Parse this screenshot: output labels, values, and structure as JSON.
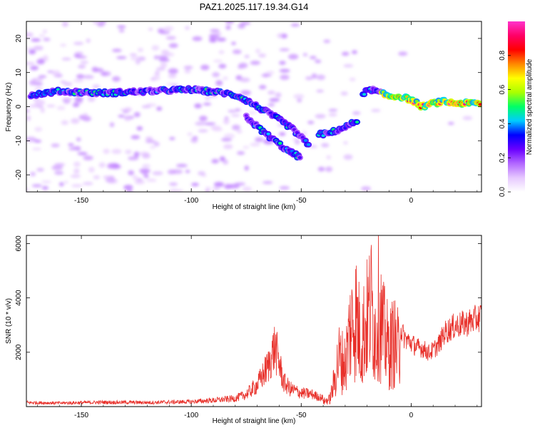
{
  "title": "PAZ1.2025.117.19.34.G14",
  "chart_data": [
    {
      "type": "heatmap",
      "xlabel": "Height of straight line (km)",
      "ylabel": "Frequency (Hz)",
      "xlim": [
        -175,
        32
      ],
      "ylim": [
        -25,
        25
      ],
      "xticks": [
        -150,
        -100,
        -50,
        0
      ],
      "yticks": [
        -20,
        -10,
        0,
        10,
        20
      ],
      "colorbar": {
        "label": "Normalized spectral amplitude",
        "range": [
          0,
          1
        ],
        "ticks": [
          0.0,
          0.2,
          0.4,
          0.6,
          0.8
        ],
        "colors": [
          "#ffffff",
          "#e6c8ff",
          "#b266ff",
          "#6a00ff",
          "#0000ff",
          "#00ccff",
          "#00ff66",
          "#aaff00",
          "#ffff00",
          "#ff8800",
          "#ff0000",
          "#ff0066",
          "#ff33cc"
        ]
      },
      "ridges": [
        {
          "x": [
            -173,
            -160,
            -140,
            -120,
            -100,
            -85,
            -78,
            -70,
            -62,
            -55,
            -50,
            -46
          ],
          "y": [
            3.5,
            4.5,
            4,
            4.5,
            5,
            4,
            3,
            0,
            -3,
            -6,
            -9,
            -12
          ]
        },
        {
          "x": [
            -75,
            -68,
            -62,
            -56,
            -50
          ],
          "y": [
            -3,
            -7,
            -10,
            -13,
            -15
          ]
        },
        {
          "x": [
            -42,
            -38,
            -34,
            -30,
            -27,
            -24
          ],
          "y": [
            -8,
            -8,
            -7,
            -6,
            -5,
            -4
          ]
        },
        {
          "x": [
            -22,
            -18,
            -14,
            -10,
            -5,
            0,
            5,
            10,
            15,
            20,
            25,
            32
          ],
          "y": [
            4,
            5,
            4,
            3,
            3,
            2,
            0,
            1,
            1.5,
            1,
            1,
            1
          ]
        }
      ]
    },
    {
      "type": "line",
      "xlabel": "Height of straight line (km)",
      "ylabel": "SNR (10 * v/v)",
      "xlim": [
        -175,
        32
      ],
      "ylim": [
        0,
        6300
      ],
      "xticks": [
        -150,
        -100,
        -50,
        0
      ],
      "yticks": [
        2000,
        4000,
        6000
      ],
      "color": "#e8302a",
      "series": [
        {
          "x": [
            -175,
            -160,
            -140,
            -120,
            -100,
            -90,
            -80,
            -75,
            -70,
            -65,
            -62,
            -60,
            -58,
            -55,
            -50,
            -45,
            -40,
            -37,
            -35,
            -33,
            -30,
            -28,
            -25,
            -23,
            -20,
            -18,
            -16,
            -15,
            -13,
            -10,
            -8,
            -5,
            -3,
            0,
            3,
            5,
            8,
            10,
            13,
            15,
            18,
            20,
            25,
            30,
            32
          ],
          "y": [
            150,
            130,
            160,
            150,
            180,
            230,
            300,
            450,
            800,
            1500,
            2200,
            1600,
            900,
            650,
            500,
            450,
            300,
            450,
            1500,
            3000,
            2600,
            4600,
            5600,
            4000,
            5300,
            6200,
            4200,
            6300,
            4600,
            3500,
            4000,
            3200,
            2800,
            2600,
            2400,
            2400,
            2200,
            2300,
            2600,
            3000,
            3200,
            3300,
            3400,
            3600,
            3700
          ]
        }
      ]
    }
  ]
}
